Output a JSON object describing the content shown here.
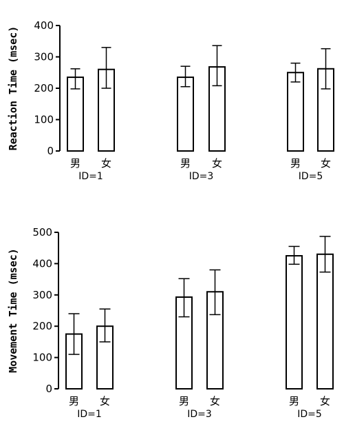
{
  "chart_data": [
    {
      "type": "bar",
      "ylabel": "Reaction Time (msec)",
      "ylim": [
        0,
        400
      ],
      "yticks": [
        0,
        100,
        200,
        300,
        400
      ],
      "categories": [
        "男",
        "女"
      ],
      "groups": [
        {
          "label": "ID=1",
          "values": [
            235,
            260
          ],
          "err_low": [
            198,
            200
          ],
          "err_high": [
            262,
            330
          ]
        },
        {
          "label": "ID=3",
          "values": [
            235,
            268
          ],
          "err_low": [
            205,
            208
          ],
          "err_high": [
            270,
            336
          ]
        },
        {
          "label": "ID=5",
          "values": [
            250,
            262
          ],
          "err_low": [
            220,
            198
          ],
          "err_high": [
            280,
            326
          ]
        }
      ]
    },
    {
      "type": "bar",
      "ylabel": "Movement Time (msec)",
      "ylim": [
        0,
        500
      ],
      "yticks": [
        0,
        100,
        200,
        300,
        400,
        500
      ],
      "categories": [
        "男",
        "女"
      ],
      "groups": [
        {
          "label": "ID=1",
          "values": [
            175,
            200
          ],
          "err_low": [
            110,
            150
          ],
          "err_high": [
            240,
            255
          ]
        },
        {
          "label": "ID=3",
          "values": [
            293,
            310
          ],
          "err_low": [
            230,
            237
          ],
          "err_high": [
            352,
            380
          ]
        },
        {
          "label": "ID=5",
          "values": [
            425,
            430
          ],
          "err_low": [
            398,
            373
          ],
          "err_high": [
            455,
            487
          ]
        }
      ]
    }
  ]
}
